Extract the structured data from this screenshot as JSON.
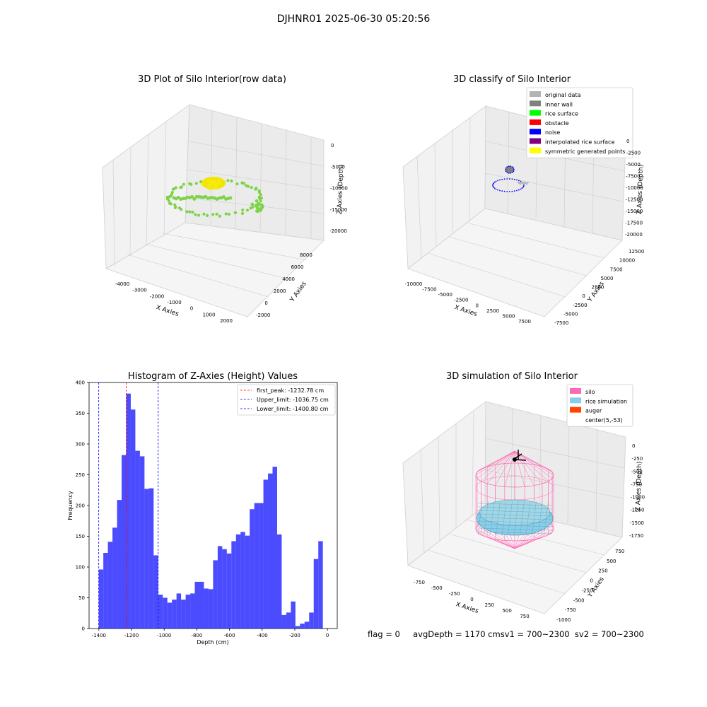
{
  "suptitle": "DJHNR01 2025-06-30 05:20:56",
  "panel_raw": {
    "title": "3D Plot of Silo Interior(row data)",
    "xlabel": "X Axies",
    "ylabel": "Y Axies",
    "zlabel": "Z Axies (Depth)",
    "x_ticks": [
      "-4000",
      "-3000",
      "-2000",
      "-1000",
      "0",
      "1000",
      "2000"
    ],
    "y_ticks": [
      "-2000",
      "0",
      "2000",
      "4000",
      "6000",
      "8000"
    ],
    "z_ticks": [
      "0",
      "-5000",
      "-10000",
      "-15000",
      "-20000"
    ],
    "colors": {
      "points": "#7ed348",
      "dense": "#f2e600"
    }
  },
  "panel_classify": {
    "title": "3D classify of Silo Interior",
    "xlabel": "X Axies",
    "ylabel": "Y Axies",
    "zlabel": "Z Axies (Depth)",
    "x_ticks": [
      "-10000",
      "-7500",
      "-5000",
      "-2500",
      "0",
      "2500",
      "5000",
      "7500"
    ],
    "y_ticks": [
      "-7500",
      "-5000",
      "-2500",
      "0",
      "2500",
      "5000",
      "7500",
      "10000",
      "12500"
    ],
    "z_ticks": [
      "0",
      "-2500",
      "-5000",
      "-7500",
      "-10000",
      "-12500",
      "-15000",
      "-17500",
      "-20000"
    ],
    "legend": [
      {
        "label": "original data",
        "color": "#b3b3b3"
      },
      {
        "label": "inner wall",
        "color": "#808080"
      },
      {
        "label": "rice surface",
        "color": "#00ff00"
      },
      {
        "label": "obstacle",
        "color": "#ff0000"
      },
      {
        "label": "noise",
        "color": "#0000ff"
      },
      {
        "label": "interpolated rice surface",
        "color": "#800080"
      },
      {
        "label": "symmetric generated points",
        "color": "#ffff00"
      }
    ]
  },
  "panel_sim": {
    "title": "3D simulation of Silo Interior",
    "xlabel": "X Axies",
    "ylabel": "Y Axies",
    "zlabel": "Z Axies (Depth)",
    "x_ticks": [
      "-750",
      "-500",
      "-250",
      "0",
      "250",
      "500",
      "750"
    ],
    "y_ticks": [
      "-1000",
      "-750",
      "-500",
      "-250",
      "0",
      "250",
      "500",
      "750"
    ],
    "z_ticks": [
      "0",
      "-250",
      "-500",
      "-750",
      "-1000",
      "-1250",
      "-1500",
      "-1750"
    ],
    "legend": [
      {
        "label": "silo",
        "color": "#ff69b4"
      },
      {
        "label": "rice simulation",
        "color": "#87ceeb"
      },
      {
        "label": "auger",
        "color": "#ff4500"
      },
      {
        "label": "center(5,-53)",
        "color": ""
      }
    ]
  },
  "status_text": "flag = 0     avgDepth = 1170 cmsv1 = 700~2300  sv2 = 700~2300",
  "chart_data": {
    "type": "bar",
    "title": "Histogram of Z-Axies (Height) Values",
    "xlabel": "Depth (cm)",
    "ylabel": "Frequency",
    "xlim": [
      -1460,
      60
    ],
    "ylim": [
      0,
      400
    ],
    "x_ticks": [
      -1400,
      -1200,
      -1000,
      -800,
      -600,
      -400,
      -200,
      0
    ],
    "y_ticks": [
      0,
      50,
      100,
      150,
      200,
      250,
      300,
      350,
      400
    ],
    "bin_start": -1400.8,
    "bin_width": 28.016,
    "values": [
      96,
      123,
      141,
      164,
      209,
      282,
      382,
      356,
      289,
      280,
      227,
      228,
      119,
      55,
      50,
      42,
      47,
      57,
      47,
      55,
      57,
      76,
      76,
      65,
      64,
      111,
      134,
      129,
      122,
      142,
      153,
      157,
      151,
      194,
      204,
      204,
      242,
      252,
      263,
      153,
      22,
      26,
      44,
      4,
      8,
      11,
      26,
      113,
      142
    ],
    "bar_color": "#0000ff",
    "lines": [
      {
        "label": "first_peak: -1232.78 cm",
        "x": -1232.78,
        "color": "#ff0000"
      },
      {
        "label": "Upper_limit: -1036.75 cm",
        "x": -1036.75,
        "color": "#0000ff"
      },
      {
        "label": "Lower_limit: -1400.80 cm",
        "x": -1400.8,
        "color": "#0000ff"
      }
    ]
  }
}
